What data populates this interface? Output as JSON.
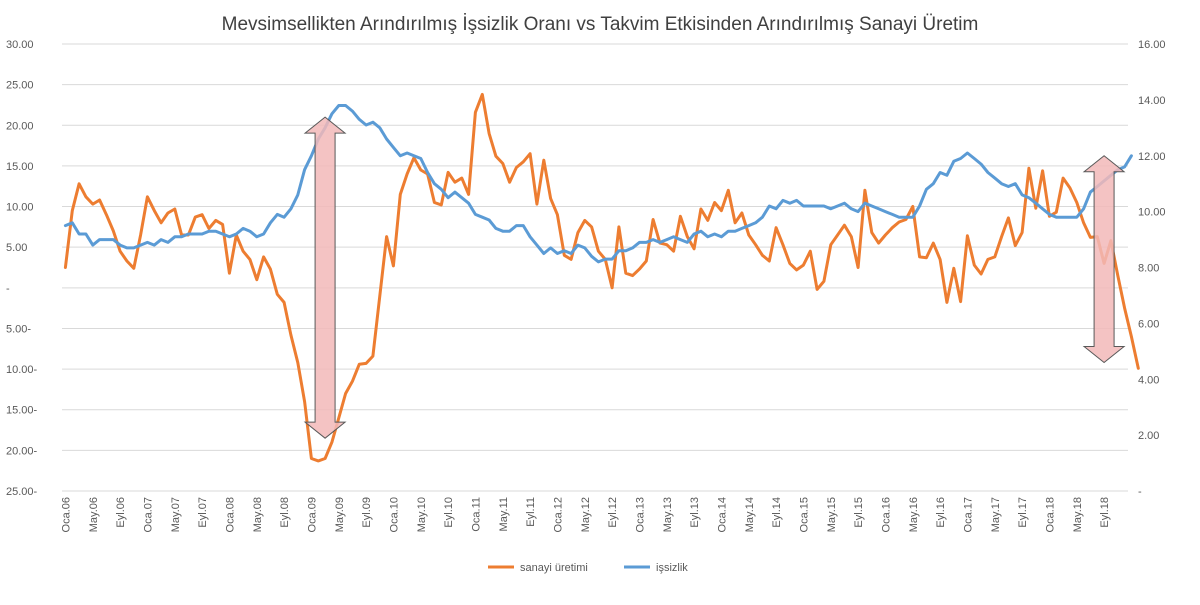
{
  "chart_data": {
    "type": "line",
    "title": "Mevsimsellikten Arındırılmış  İşsizlik Oranı  vs  Takvim Etkisinden Arındırılmış Sanayi Üretim",
    "left_axis": {
      "range": [
        -25,
        30
      ],
      "ticks": [
        30,
        25,
        20,
        15,
        10,
        5,
        0,
        -5,
        -10,
        -15,
        -20,
        -25
      ],
      "tick_labels": [
        "30.00",
        "25.00",
        "20.00",
        "15.00",
        "10.00",
        "5.00",
        "-",
        "5.00-",
        "10.00-",
        "15.00-",
        "20.00-",
        "25.00-"
      ]
    },
    "right_axis": {
      "range": [
        0,
        16
      ],
      "ticks": [
        16,
        14,
        12,
        10,
        8,
        6,
        4,
        2,
        0
      ],
      "tick_labels": [
        "16.00",
        "14.00",
        "12.00",
        "10.00",
        "8.00",
        "6.00",
        "4.00",
        "2.00",
        "-"
      ]
    },
    "x_tick_labels": [
      "Oca.06",
      "May.06",
      "Eyl.06",
      "Oca.07",
      "May.07",
      "Eyl.07",
      "Oca.08",
      "May.08",
      "Eyl.08",
      "Oca.09",
      "May.09",
      "Eyl.09",
      "Oca.10",
      "May.10",
      "Eyl.10",
      "Oca.11",
      "May.11",
      "Eyl.11",
      "Oca.12",
      "May.12",
      "Eyl.12",
      "Oca.13",
      "May.13",
      "Eyl.13",
      "Oca.14",
      "May.14",
      "Eyl.14",
      "Oca.15",
      "May.15",
      "Eyl.15",
      "Oca.16",
      "May.16",
      "Eyl.16",
      "Oca.17",
      "May.17",
      "Eyl.17",
      "Oca.18",
      "May.18",
      "Eyl.18"
    ],
    "months_count": 156,
    "grid": true,
    "legend_position": "bottom",
    "series": [
      {
        "name": "sanayi üretimi",
        "axis": "left",
        "color": "#ED7D31",
        "values": [
          2.5,
          9.5,
          12.8,
          11.2,
          10.3,
          10.8,
          9.0,
          7.0,
          4.5,
          3.3,
          2.4,
          6.5,
          11.2,
          9.5,
          8.0,
          9.2,
          9.7,
          6.5,
          6.5,
          8.7,
          9.0,
          7.3,
          8.3,
          7.8,
          1.8,
          6.5,
          4.5,
          3.5,
          1.0,
          3.8,
          2.3,
          -0.8,
          -1.8,
          -5.8,
          -9.2,
          -14.0,
          -21.0,
          -21.3,
          -21.0,
          -19.0,
          -16.0,
          -13.0,
          -11.5,
          -9.4,
          -9.3,
          -8.4,
          -1.0,
          6.3,
          2.7,
          11.5,
          14.0,
          16.0,
          14.5,
          14.0,
          10.5,
          10.2,
          14.2,
          13.0,
          13.5,
          11.5,
          21.6,
          23.8,
          19.0,
          16.2,
          15.3,
          13.0,
          14.8,
          15.5,
          16.5,
          10.3,
          15.7,
          11.0,
          9.0,
          4.0,
          3.5,
          6.8,
          8.3,
          7.5,
          4.5,
          3.5,
          0.0,
          7.5,
          1.8,
          1.5,
          2.3,
          3.3,
          8.4,
          5.5,
          5.3,
          4.5,
          8.8,
          6.3,
          4.8,
          9.7,
          8.3,
          10.5,
          9.5,
          12.0,
          8.0,
          9.2,
          6.5,
          5.3,
          4.0,
          3.3,
          7.4,
          5.3,
          3.0,
          2.2,
          2.8,
          4.5,
          -0.2,
          0.8,
          5.3,
          6.5,
          7.7,
          6.3,
          2.5,
          12.0,
          6.8,
          5.5,
          6.5,
          7.4,
          8.1,
          8.4,
          10.0,
          3.8,
          3.7,
          5.5,
          3.5,
          -1.8,
          2.4,
          -1.7,
          6.4,
          2.8,
          1.7,
          3.5,
          3.8,
          6.3,
          8.6,
          5.2,
          6.8,
          14.7,
          9.8,
          14.4,
          8.8,
          9.3,
          13.5,
          12.3,
          10.5,
          8.0,
          6.2,
          6.3,
          3.0,
          5.8,
          1.5,
          -2.5,
          -6.0,
          -9.9
        ]
      },
      {
        "name": "işsizlik",
        "axis": "right",
        "color": "#5B9BD5",
        "values": [
          9.5,
          9.6,
          9.2,
          9.2,
          8.8,
          9.0,
          9.0,
          9.0,
          8.8,
          8.7,
          8.7,
          8.8,
          8.9,
          8.8,
          9.0,
          8.9,
          9.1,
          9.1,
          9.2,
          9.2,
          9.2,
          9.3,
          9.3,
          9.2,
          9.1,
          9.2,
          9.4,
          9.3,
          9.1,
          9.2,
          9.6,
          9.9,
          9.8,
          10.1,
          10.6,
          11.5,
          12.0,
          12.6,
          13.0,
          13.5,
          13.8,
          13.8,
          13.6,
          13.3,
          13.1,
          13.2,
          13.0,
          12.6,
          12.3,
          12.0,
          12.1,
          12.0,
          11.9,
          11.4,
          11.0,
          10.8,
          10.5,
          10.7,
          10.5,
          10.3,
          9.9,
          9.8,
          9.7,
          9.4,
          9.3,
          9.3,
          9.5,
          9.5,
          9.1,
          8.8,
          8.5,
          8.7,
          8.5,
          8.6,
          8.5,
          8.8,
          8.7,
          8.4,
          8.2,
          8.3,
          8.3,
          8.6,
          8.6,
          8.7,
          8.9,
          8.9,
          9.0,
          8.9,
          9.0,
          9.1,
          9.0,
          8.9,
          9.2,
          9.3,
          9.1,
          9.2,
          9.1,
          9.3,
          9.3,
          9.4,
          9.5,
          9.6,
          9.8,
          10.2,
          10.1,
          10.4,
          10.3,
          10.4,
          10.2,
          10.2,
          10.2,
          10.2,
          10.1,
          10.2,
          10.3,
          10.1,
          10.0,
          10.3,
          10.2,
          10.1,
          10.0,
          9.9,
          9.8,
          9.8,
          9.8,
          10.2,
          10.8,
          11.0,
          11.4,
          11.3,
          11.8,
          11.9,
          12.1,
          11.9,
          11.7,
          11.4,
          11.2,
          11.0,
          10.9,
          11.0,
          10.6,
          10.5,
          10.3,
          10.1,
          9.9,
          9.8,
          9.8,
          9.8,
          9.8,
          10.1,
          10.7,
          10.9,
          11.1,
          11.3,
          11.5,
          11.6,
          12.0
        ]
      }
    ]
  },
  "annotations": {
    "arrow_color": "#F2B8B8",
    "arrow_stroke": "#595959"
  }
}
